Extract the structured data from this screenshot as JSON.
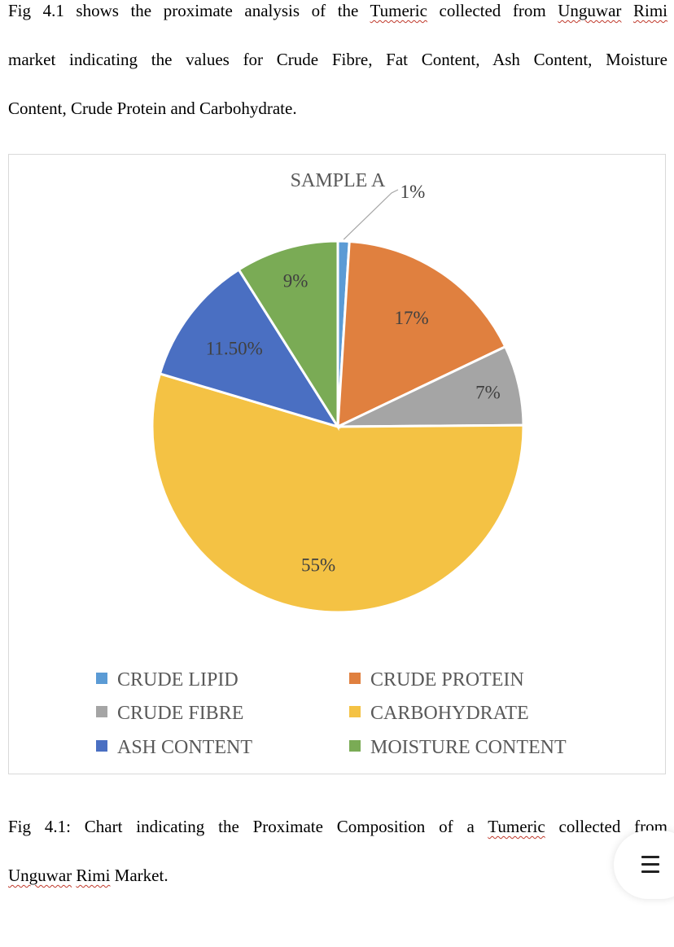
{
  "intro": {
    "lines": [
      [
        "Fig 4.1 shows the proximate analysis of the ",
        "Tumeric",
        " collected from ",
        "Unguwar",
        " ",
        "Rimi",
        ""
      ],
      [
        "market indicating the values for Crude Fibre, Fat Content, Ash Content, Moisture"
      ],
      [
        "Content, Crude Protein and Carbohydrate."
      ]
    ]
  },
  "caption": {
    "lines": [
      [
        "Fig 4.1: Chart indicating the Proximate Composition of a ",
        "Tumeric",
        " collected from"
      ],
      [
        "",
        "Unguwar",
        " ",
        "Rimi",
        " Market."
      ]
    ]
  },
  "chart_data": {
    "type": "pie",
    "title": "SAMPLE A",
    "slices": [
      {
        "label": "CRUDE LIPID",
        "value": 1,
        "value_label": "1%",
        "color": "#5b9bd5"
      },
      {
        "label": "CRUDE PROTEIN",
        "value": 17,
        "value_label": "17%",
        "color": "#e0803f"
      },
      {
        "label": "CRUDE FIBRE",
        "value": 7,
        "value_label": "7%",
        "color": "#a5a5a5"
      },
      {
        "label": "CARBOHYDRATE",
        "value": 55,
        "value_label": "55%",
        "color": "#f4c244"
      },
      {
        "label": "ASH CONTENT",
        "value": 11.5,
        "value_label": "11.50%",
        "color": "#4a6fc2"
      },
      {
        "label": "MOISTURE CONTENT",
        "value": 9,
        "value_label": "9%",
        "color": "#7aab55"
      }
    ],
    "legend_position": "bottom",
    "legend_order": [
      "CRUDE LIPID",
      "CRUDE PROTEIN",
      "CRUDE FIBRE",
      "CARBOHYDRATE",
      "ASH CONTENT",
      "MOISTURE CONTENT"
    ]
  },
  "menu": {
    "icon": "hamburger-menu-icon"
  }
}
